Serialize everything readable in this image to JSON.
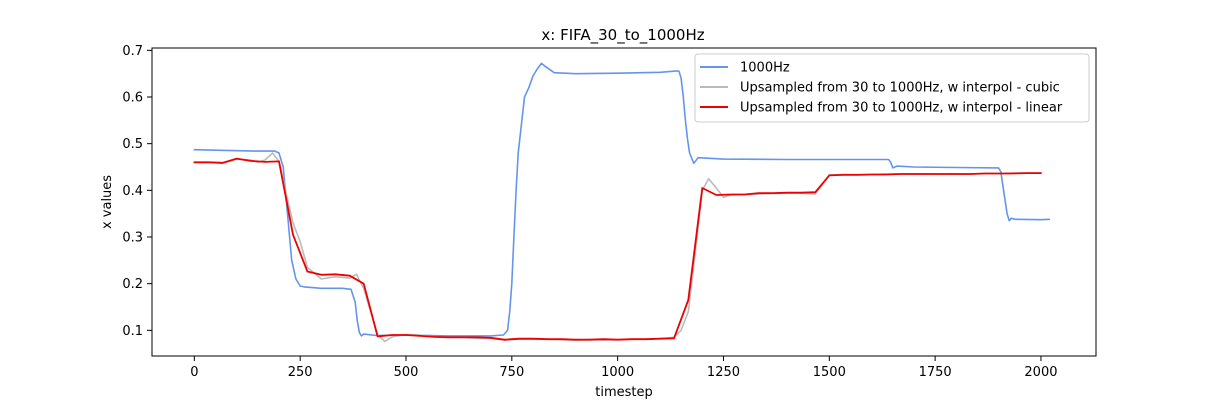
{
  "chart_data": {
    "type": "line",
    "title": "x: FIFA_30_to_1000Hz",
    "xlabel": "timestep",
    "ylabel": "x values",
    "xlim": [
      -100,
      2130
    ],
    "ylim": [
      0.045,
      0.705
    ],
    "xticks": [
      0,
      250,
      500,
      750,
      1000,
      1250,
      1500,
      1750,
      2000
    ],
    "yticks": [
      0.1,
      0.2,
      0.3,
      0.4,
      0.5,
      0.6,
      0.7
    ],
    "xtick_labels": [
      "0",
      "250",
      "500",
      "750",
      "1000",
      "1250",
      "1500",
      "1750",
      "2000"
    ],
    "ytick_labels": [
      "0.1",
      "0.2",
      "0.3",
      "0.4",
      "0.5",
      "0.6",
      "0.7"
    ],
    "grid": false,
    "legend_position": "top-right",
    "series": [
      {
        "name": "1000Hz",
        "color": "#6495ED",
        "x": [
          0,
          50,
          100,
          150,
          190,
          200,
          210,
          220,
          230,
          240,
          250,
          260,
          300,
          350,
          370,
          380,
          385,
          390,
          395,
          400,
          430,
          500,
          600,
          700,
          730,
          740,
          745,
          750,
          755,
          760,
          765,
          770,
          775,
          780,
          790,
          800,
          810,
          820,
          830,
          850,
          900,
          1000,
          1100,
          1140,
          1145,
          1150,
          1155,
          1160,
          1165,
          1170,
          1180,
          1190,
          1250,
          1400,
          1640,
          1645,
          1650,
          1660,
          1700,
          1800,
          1900,
          1905,
          1910,
          1915,
          1920,
          1925,
          1930,
          1940,
          2000,
          2020
        ],
        "values": [
          0.487,
          0.486,
          0.485,
          0.484,
          0.484,
          0.48,
          0.45,
          0.35,
          0.25,
          0.21,
          0.195,
          0.193,
          0.19,
          0.19,
          0.188,
          0.16,
          0.12,
          0.095,
          0.088,
          0.092,
          0.089,
          0.09,
          0.088,
          0.088,
          0.09,
          0.1,
          0.14,
          0.2,
          0.3,
          0.4,
          0.48,
          0.52,
          0.56,
          0.6,
          0.62,
          0.645,
          0.66,
          0.672,
          0.665,
          0.652,
          0.65,
          0.651,
          0.653,
          0.656,
          0.655,
          0.64,
          0.6,
          0.55,
          0.51,
          0.48,
          0.458,
          0.47,
          0.467,
          0.466,
          0.466,
          0.46,
          0.448,
          0.452,
          0.45,
          0.449,
          0.448,
          0.44,
          0.41,
          0.38,
          0.35,
          0.335,
          0.34,
          0.338,
          0.337,
          0.338
        ]
      },
      {
        "name": "Upsampled from 30 to 1000Hz, w interpol - cubic",
        "color": "#BBBBBB",
        "x": [
          0,
          33,
          67,
          100,
          133,
          150,
          167,
          185,
          200,
          233,
          250,
          267,
          300,
          333,
          367,
          383,
          400,
          433,
          450,
          467,
          500,
          533,
          567,
          600,
          633,
          667,
          700,
          733,
          767,
          800,
          833,
          867,
          900,
          933,
          967,
          1000,
          1033,
          1067,
          1100,
          1133,
          1150,
          1167,
          1180,
          1200,
          1215,
          1233,
          1250,
          1267,
          1300,
          1333,
          1367,
          1400,
          1433,
          1467,
          1500,
          1533,
          1567,
          1600,
          1633,
          1667,
          1700,
          1733,
          1767,
          1800,
          1833,
          1867,
          1900,
          1933,
          1967,
          2000
        ],
        "values": [
          0.46,
          0.46,
          0.458,
          0.467,
          0.465,
          0.46,
          0.465,
          0.48,
          0.462,
          0.33,
          0.29,
          0.235,
          0.21,
          0.215,
          0.212,
          0.22,
          0.19,
          0.09,
          0.076,
          0.086,
          0.091,
          0.09,
          0.086,
          0.085,
          0.085,
          0.083,
          0.083,
          0.079,
          0.081,
          0.081,
          0.081,
          0.08,
          0.079,
          0.08,
          0.079,
          0.08,
          0.081,
          0.081,
          0.082,
          0.085,
          0.1,
          0.14,
          0.24,
          0.4,
          0.425,
          0.405,
          0.385,
          0.39,
          0.391,
          0.392,
          0.393,
          0.394,
          0.394,
          0.392,
          0.433,
          0.434,
          0.434,
          0.434,
          0.435,
          0.435,
          0.435,
          0.435,
          0.435,
          0.435,
          0.435,
          0.436,
          0.436,
          0.437,
          0.437,
          0.437
        ]
      },
      {
        "name": "Upsampled from 30 to 1000Hz, w interpol - linear",
        "color": "#EE0000",
        "x": [
          0,
          33,
          67,
          100,
          133,
          167,
          200,
          233,
          267,
          300,
          333,
          367,
          400,
          433,
          467,
          500,
          533,
          567,
          600,
          633,
          667,
          700,
          733,
          767,
          800,
          833,
          867,
          900,
          933,
          967,
          1000,
          1033,
          1067,
          1100,
          1133,
          1167,
          1200,
          1233,
          1267,
          1300,
          1333,
          1367,
          1400,
          1433,
          1467,
          1500,
          1533,
          1567,
          1600,
          1633,
          1667,
          1700,
          1733,
          1767,
          1800,
          1833,
          1867,
          1900,
          1933,
          1967,
          2000
        ],
        "values": [
          0.46,
          0.46,
          0.459,
          0.468,
          0.463,
          0.461,
          0.462,
          0.305,
          0.226,
          0.219,
          0.22,
          0.217,
          0.2,
          0.087,
          0.09,
          0.09,
          0.088,
          0.086,
          0.085,
          0.085,
          0.085,
          0.084,
          0.08,
          0.082,
          0.082,
          0.081,
          0.081,
          0.08,
          0.08,
          0.081,
          0.08,
          0.081,
          0.081,
          0.082,
          0.083,
          0.165,
          0.405,
          0.39,
          0.391,
          0.391,
          0.394,
          0.394,
          0.395,
          0.395,
          0.396,
          0.432,
          0.433,
          0.433,
          0.434,
          0.434,
          0.435,
          0.435,
          0.435,
          0.435,
          0.435,
          0.435,
          0.436,
          0.436,
          0.436,
          0.437,
          0.437
        ]
      }
    ]
  }
}
